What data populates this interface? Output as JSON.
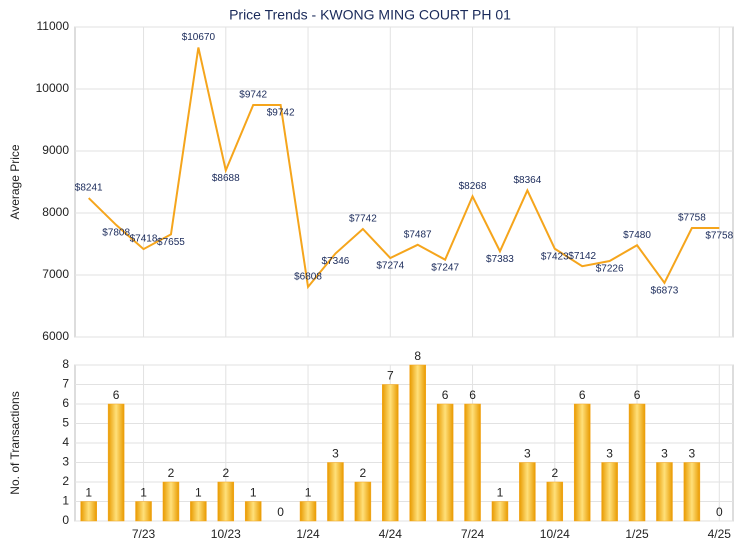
{
  "chart_data": [
    {
      "type": "line",
      "title": "Price Trends - KWONG MING COURT PH 01",
      "y_label": "Average Price",
      "values": [
        8241,
        7808,
        7418,
        7655,
        10670,
        8688,
        9742,
        9742,
        6808,
        7346,
        7742,
        7274,
        7487,
        7247,
        8268,
        7383,
        8364,
        7423,
        7142,
        7226,
        7480,
        6873,
        7758,
        7758
      ],
      "value_labels": [
        "$8241",
        "$7808",
        "$7418",
        "$7655",
        "$10670",
        "$8688",
        "$9742",
        "$9742",
        "$6808",
        "$7346",
        "$7742",
        "$7274",
        "$7487",
        "$7247",
        "$8268",
        "$7383",
        "$8364",
        "$7423",
        "$7142",
        "$7226",
        "$7480",
        "$6873",
        "$7758",
        "$7758"
      ],
      "color": "#f5a51c",
      "ylim": [
        6000,
        11000
      ],
      "yticks": [
        6000,
        7000,
        8000,
        9000,
        10000,
        11000
      ],
      "grid": true
    },
    {
      "type": "bar",
      "y_label": "No. of Transactions",
      "categories": [
        null,
        null,
        "7/23",
        null,
        null,
        "10/23",
        null,
        null,
        "1/24",
        null,
        null,
        "4/24",
        null,
        null,
        "7/24",
        null,
        null,
        "10/24",
        null,
        null,
        "1/25",
        null,
        null,
        "4/25"
      ],
      "values": [
        1,
        6,
        1,
        2,
        1,
        2,
        1,
        0,
        1,
        3,
        2,
        7,
        8,
        6,
        6,
        1,
        3,
        2,
        6,
        3,
        6,
        3,
        3,
        0
      ],
      "color": "#f5a51c",
      "ylim": [
        0,
        8
      ],
      "yticks": [
        0,
        1,
        2,
        3,
        4,
        5,
        6,
        7,
        8
      ],
      "grid": true
    }
  ]
}
